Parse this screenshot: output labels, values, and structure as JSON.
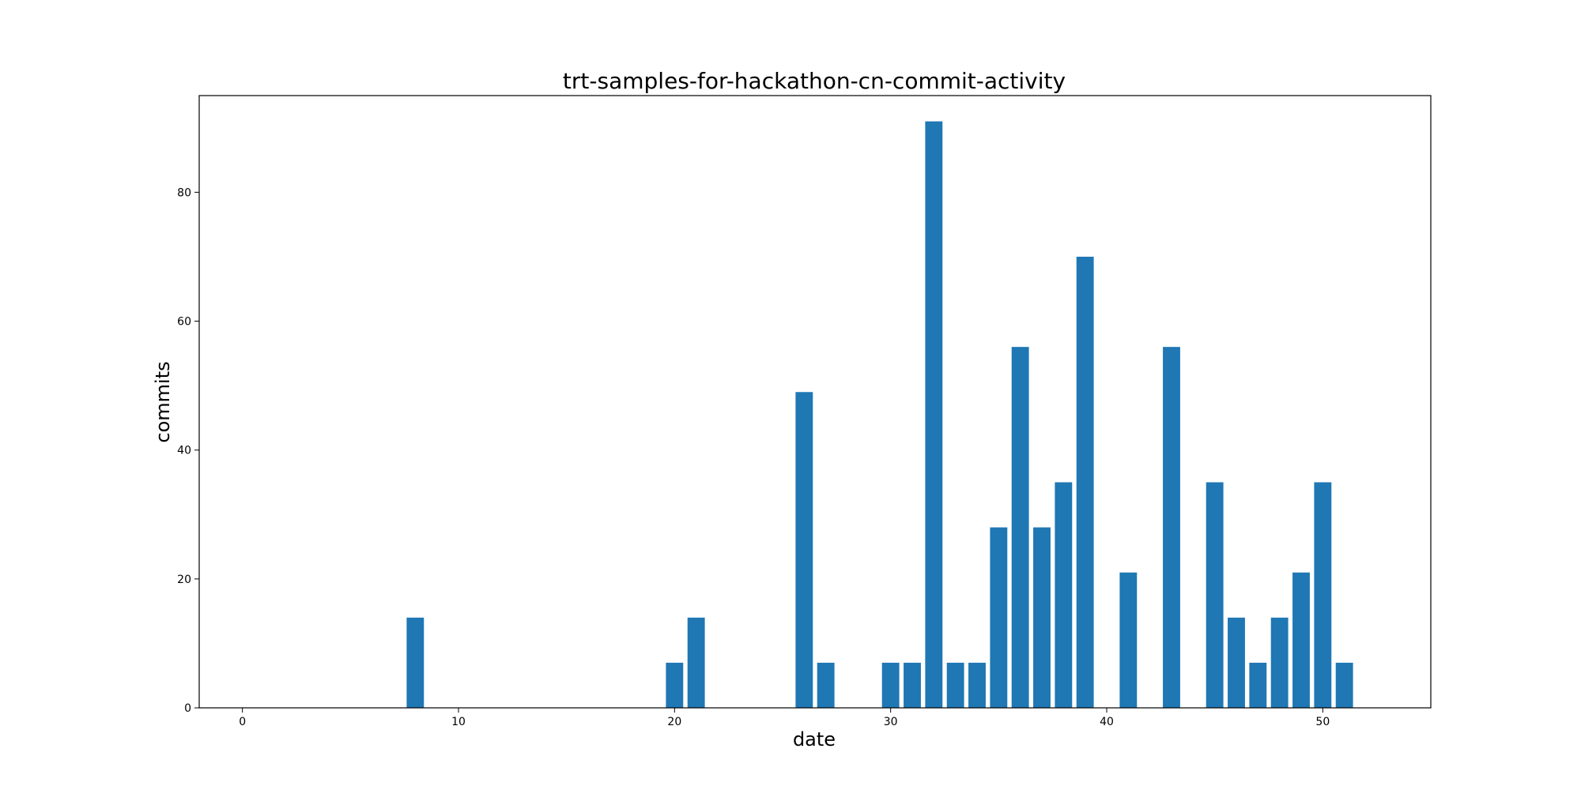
{
  "chart_data": {
    "type": "bar",
    "title": "trt-samples-for-hackathon-cn-commit-activity",
    "xlabel": "date",
    "ylabel": "commits",
    "xlim": [
      -2,
      55
    ],
    "ylim": [
      0,
      95
    ],
    "xticks": [
      0,
      10,
      20,
      30,
      40,
      50
    ],
    "yticks": [
      0,
      20,
      40,
      60,
      80
    ],
    "grid": false,
    "color": "#1f77b4",
    "x": [
      0,
      1,
      2,
      3,
      4,
      5,
      6,
      7,
      8,
      9,
      10,
      11,
      12,
      13,
      14,
      15,
      16,
      17,
      18,
      19,
      20,
      21,
      22,
      23,
      24,
      25,
      26,
      27,
      28,
      29,
      30,
      31,
      32,
      33,
      34,
      35,
      36,
      37,
      38,
      39,
      40,
      41,
      42,
      43,
      44,
      45,
      46,
      47,
      48,
      49,
      50,
      51
    ],
    "values": [
      0,
      0,
      0,
      0,
      0,
      0,
      0,
      0,
      14,
      0,
      0,
      0,
      0,
      0,
      0,
      0,
      0,
      0,
      0,
      0,
      7,
      14,
      0,
      0,
      0,
      0,
      49,
      7,
      0,
      0,
      7,
      7,
      91,
      7,
      7,
      28,
      56,
      28,
      35,
      70,
      0,
      21,
      0,
      56,
      0,
      35,
      14,
      7,
      14,
      21,
      35,
      7
    ]
  }
}
